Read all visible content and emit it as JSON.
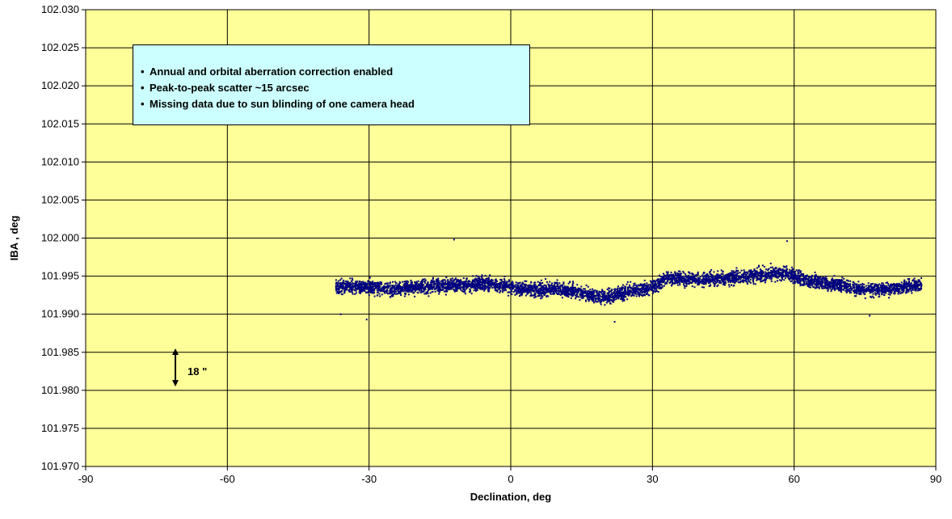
{
  "chart_data": {
    "type": "scatter",
    "xlabel": "Declination, deg",
    "ylabel": "IBA , deg",
    "xlim": [
      -90,
      90
    ],
    "ylim": [
      101.97,
      102.03
    ],
    "x_ticks": [
      "-90",
      "-60",
      "-30",
      "0",
      "30",
      "60",
      "90"
    ],
    "y_ticks": [
      "101.970",
      "101.975",
      "101.980",
      "101.985",
      "101.990",
      "101.995",
      "102.000",
      "102.005",
      "102.010",
      "102.015",
      "102.020",
      "102.025",
      "102.030"
    ],
    "grid": true,
    "plot_background": "#ffff99",
    "marker_color": "#000080",
    "annotation_box": {
      "lines": [
        "Annual and orbital aberration correction enabled",
        "Peak-to-peak scatter ~15 arcsec",
        "Missing data due to sun blinding of one camera head"
      ],
      "background": "#ccffff"
    },
    "scale_marker": {
      "label": "18 \"",
      "x": -71,
      "y_low": 101.9805,
      "y_high": 101.9855
    },
    "series": [
      {
        "x_range": [
          -37,
          87
        ],
        "trend": [
          [
            -37,
            101.9937
          ],
          [
            -30,
            101.9935
          ],
          [
            -25,
            101.9933
          ],
          [
            -20,
            101.9935
          ],
          [
            -15,
            101.9937
          ],
          [
            -10,
            101.9938
          ],
          [
            -5,
            101.9941
          ],
          [
            0,
            101.9935
          ],
          [
            5,
            101.9932
          ],
          [
            10,
            101.9934
          ],
          [
            15,
            101.9928
          ],
          [
            20,
            101.9922
          ],
          [
            25,
            101.993
          ],
          [
            30,
            101.9935
          ],
          [
            33,
            101.9948
          ],
          [
            40,
            101.9945
          ],
          [
            45,
            101.9947
          ],
          [
            50,
            101.9949
          ],
          [
            55,
            101.9953
          ],
          [
            58,
            101.9955
          ],
          [
            62,
            101.9945
          ],
          [
            70,
            101.9938
          ],
          [
            75,
            101.9932
          ],
          [
            80,
            101.9933
          ],
          [
            87,
            101.9938
          ]
        ],
        "scatter_halfwidth": 0.0011,
        "outliers": [
          [
            -12,
            101.9998
          ],
          [
            58.5,
            101.9996
          ],
          [
            -30.5,
            101.9893
          ],
          [
            22,
            101.989
          ],
          [
            -36,
            101.99
          ],
          [
            76,
            101.9898
          ]
        ]
      }
    ]
  }
}
